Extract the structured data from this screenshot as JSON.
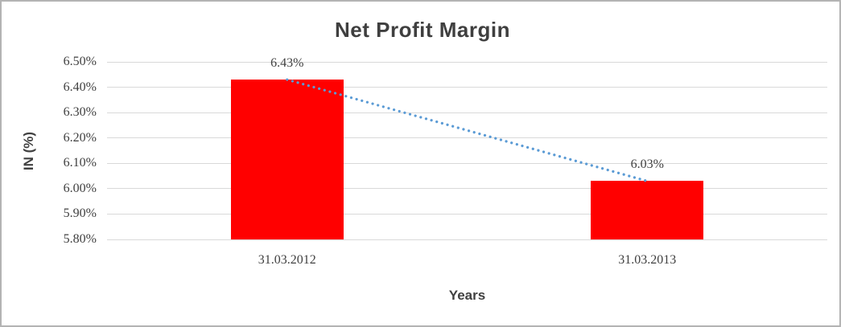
{
  "chart_data": {
    "type": "bar",
    "title": "Net Profit Margin",
    "xlabel": "Years",
    "ylabel": "IN (%)",
    "categories": [
      "31.03.2012",
      "31.03.2013"
    ],
    "values": [
      6.43,
      6.03
    ],
    "data_labels": [
      "6.43%",
      "6.03%"
    ],
    "y_ticks": [
      "6.50%",
      "6.40%",
      "6.30%",
      "6.20%",
      "6.10%",
      "6.00%",
      "5.90%",
      "5.80%"
    ],
    "ylim": [
      5.8,
      6.5
    ],
    "grid": "horizontal",
    "legend": "none",
    "trendline": {
      "type": "linear",
      "style": "dotted"
    },
    "colors": {
      "bar": "#ff0000",
      "trendline": "#5b9bd5",
      "gridline": "#d9d9d9",
      "title_text": "#3f3f3f",
      "axis_title_text": "#404040",
      "tick_text": "#404040",
      "frame_border": "#b3b3b3"
    }
  }
}
